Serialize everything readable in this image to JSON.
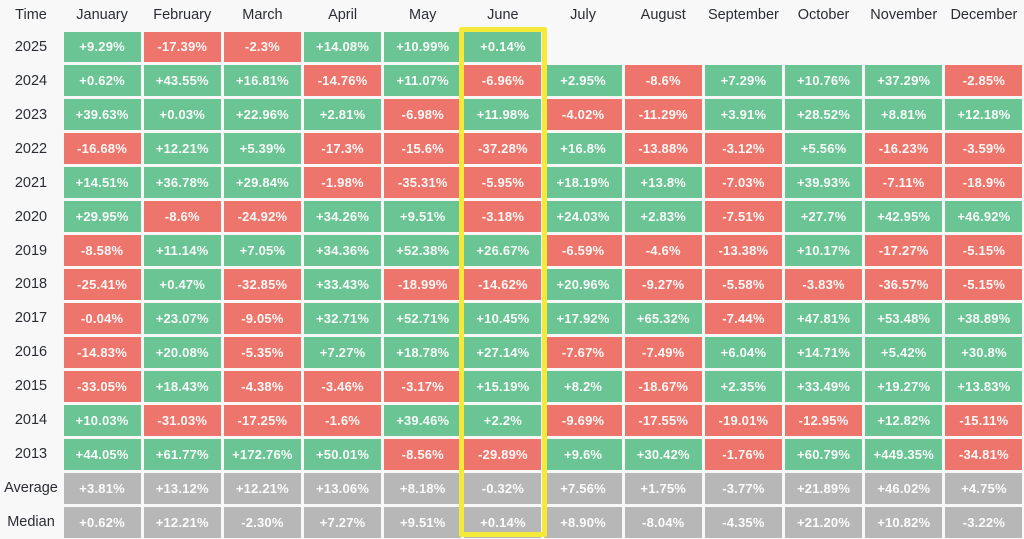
{
  "chart_data": {
    "type": "heatmap",
    "description": "Monthly percentage returns heatmap by year with Average and Median summary rows; June column highlighted",
    "corner_label": "Time",
    "columns": [
      "January",
      "February",
      "March",
      "April",
      "May",
      "June",
      "July",
      "August",
      "September",
      "October",
      "November",
      "December"
    ],
    "highlighted_column": "June",
    "rows": [
      {
        "label": "2025",
        "summary": false,
        "values": [
          "+9.29%",
          "-17.39%",
          "-2.3%",
          "+14.08%",
          "+10.99%",
          "+0.14%",
          null,
          null,
          null,
          null,
          null,
          null
        ]
      },
      {
        "label": "2024",
        "summary": false,
        "values": [
          "+0.62%",
          "+43.55%",
          "+16.81%",
          "-14.76%",
          "+11.07%",
          "-6.96%",
          "+2.95%",
          "-8.6%",
          "+7.29%",
          "+10.76%",
          "+37.29%",
          "-2.85%"
        ]
      },
      {
        "label": "2023",
        "summary": false,
        "values": [
          "+39.63%",
          "+0.03%",
          "+22.96%",
          "+2.81%",
          "-6.98%",
          "+11.98%",
          "-4.02%",
          "-11.29%",
          "+3.91%",
          "+28.52%",
          "+8.81%",
          "+12.18%"
        ]
      },
      {
        "label": "2022",
        "summary": false,
        "values": [
          "-16.68%",
          "+12.21%",
          "+5.39%",
          "-17.3%",
          "-15.6%",
          "-37.28%",
          "+16.8%",
          "-13.88%",
          "-3.12%",
          "+5.56%",
          "-16.23%",
          "-3.59%"
        ]
      },
      {
        "label": "2021",
        "summary": false,
        "values": [
          "+14.51%",
          "+36.78%",
          "+29.84%",
          "-1.98%",
          "-35.31%",
          "-5.95%",
          "+18.19%",
          "+13.8%",
          "-7.03%",
          "+39.93%",
          "-7.11%",
          "-18.9%"
        ]
      },
      {
        "label": "2020",
        "summary": false,
        "values": [
          "+29.95%",
          "-8.6%",
          "-24.92%",
          "+34.26%",
          "+9.51%",
          "-3.18%",
          "+24.03%",
          "+2.83%",
          "-7.51%",
          "+27.7%",
          "+42.95%",
          "+46.92%"
        ]
      },
      {
        "label": "2019",
        "summary": false,
        "values": [
          "-8.58%",
          "+11.14%",
          "+7.05%",
          "+34.36%",
          "+52.38%",
          "+26.67%",
          "-6.59%",
          "-4.6%",
          "-13.38%",
          "+10.17%",
          "-17.27%",
          "-5.15%"
        ]
      },
      {
        "label": "2018",
        "summary": false,
        "values": [
          "-25.41%",
          "+0.47%",
          "-32.85%",
          "+33.43%",
          "-18.99%",
          "-14.62%",
          "+20.96%",
          "-9.27%",
          "-5.58%",
          "-3.83%",
          "-36.57%",
          "-5.15%"
        ]
      },
      {
        "label": "2017",
        "summary": false,
        "values": [
          "-0.04%",
          "+23.07%",
          "-9.05%",
          "+32.71%",
          "+52.71%",
          "+10.45%",
          "+17.92%",
          "+65.32%",
          "-7.44%",
          "+47.81%",
          "+53.48%",
          "+38.89%"
        ]
      },
      {
        "label": "2016",
        "summary": false,
        "values": [
          "-14.83%",
          "+20.08%",
          "-5.35%",
          "+7.27%",
          "+18.78%",
          "+27.14%",
          "-7.67%",
          "-7.49%",
          "+6.04%",
          "+14.71%",
          "+5.42%",
          "+30.8%"
        ]
      },
      {
        "label": "2015",
        "summary": false,
        "values": [
          "-33.05%",
          "+18.43%",
          "-4.38%",
          "-3.46%",
          "-3.17%",
          "+15.19%",
          "+8.2%",
          "-18.67%",
          "+2.35%",
          "+33.49%",
          "+19.27%",
          "+13.83%"
        ]
      },
      {
        "label": "2014",
        "summary": false,
        "values": [
          "+10.03%",
          "-31.03%",
          "-17.25%",
          "-1.6%",
          "+39.46%",
          "+2.2%",
          "-9.69%",
          "-17.55%",
          "-19.01%",
          "-12.95%",
          "+12.82%",
          "-15.11%"
        ]
      },
      {
        "label": "2013",
        "summary": false,
        "values": [
          "+44.05%",
          "+61.77%",
          "+172.76%",
          "+50.01%",
          "-8.56%",
          "-29.89%",
          "+9.6%",
          "+30.42%",
          "-1.76%",
          "+60.79%",
          "+449.35%",
          "-34.81%"
        ]
      },
      {
        "label": "Average",
        "summary": true,
        "values": [
          "+3.81%",
          "+13.12%",
          "+12.21%",
          "+13.06%",
          "+8.18%",
          "-0.32%",
          "+7.56%",
          "+1.75%",
          "-3.77%",
          "+21.89%",
          "+46.02%",
          "+4.75%"
        ]
      },
      {
        "label": "Median",
        "summary": true,
        "values": [
          "+0.62%",
          "+12.21%",
          "-2.30%",
          "+7.27%",
          "+9.51%",
          "+0.14%",
          "+8.90%",
          "-8.04%",
          "-4.35%",
          "+21.20%",
          "+10.82%",
          "-3.22%"
        ]
      }
    ],
    "colors": {
      "positive": "#6bc493",
      "negative": "#ed756b",
      "summary": "#b7b7b7",
      "highlight": "#f5e93a",
      "cell_text": "#ffffff",
      "label_text": "#2a2d33",
      "background": "#f8f8f8"
    }
  }
}
